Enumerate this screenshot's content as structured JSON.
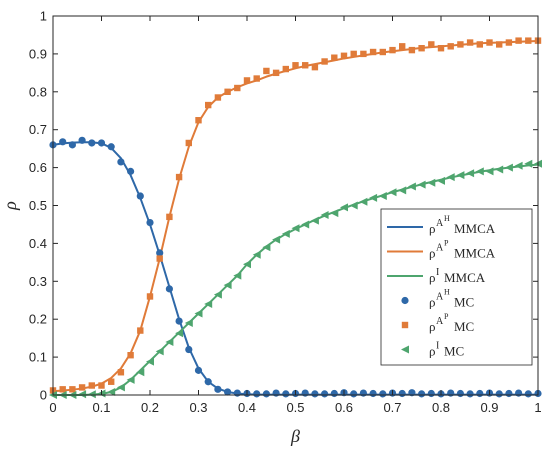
{
  "chart_data": {
    "type": "line",
    "title": "",
    "xlabel": "β",
    "ylabel": "ρ",
    "xlim": [
      0,
      1
    ],
    "ylim": [
      0,
      1
    ],
    "xticks": [
      0,
      0.1,
      0.2,
      0.3,
      0.4,
      0.5,
      0.6,
      0.7,
      0.8,
      0.9,
      1
    ],
    "xtick_labels": [
      "0",
      "0.1",
      "0.2",
      "0.3",
      "0.4",
      "0.5",
      "0.6",
      "0.7",
      "0.8",
      "0.9",
      "1"
    ],
    "yticks": [
      0,
      0.1,
      0.2,
      0.3,
      0.4,
      0.5,
      0.6,
      0.7,
      0.8,
      0.9,
      1
    ],
    "ytick_labels": [
      "0",
      "0.1",
      "0.2",
      "0.3",
      "0.4",
      "0.5",
      "0.6",
      "0.7",
      "0.8",
      "0.9",
      "1"
    ],
    "grid": false,
    "legend_placement": "lower-right",
    "colors": {
      "AH": "#2e68a8",
      "AP": "#e07b39",
      "I": "#4ea56e",
      "axis": "#262626"
    },
    "x": [
      0,
      0.02,
      0.04,
      0.06,
      0.08,
      0.1,
      0.12,
      0.14,
      0.16,
      0.18,
      0.2,
      0.22,
      0.24,
      0.26,
      0.28,
      0.3,
      0.32,
      0.34,
      0.36,
      0.38,
      0.4,
      0.42,
      0.44,
      0.46,
      0.48,
      0.5,
      0.52,
      0.54,
      0.56,
      0.58,
      0.6,
      0.62,
      0.64,
      0.66,
      0.68,
      0.7,
      0.72,
      0.74,
      0.76,
      0.78,
      0.8,
      0.82,
      0.84,
      0.86,
      0.88,
      0.9,
      0.92,
      0.94,
      0.96,
      0.98,
      1
    ],
    "series": [
      {
        "name": "ρ^{A^H} MMCA",
        "legend_base": "ρ",
        "legend_sup": "A",
        "legend_supsup": "H",
        "legend_suffix": "MMCA",
        "style": "line",
        "color": "#2e68a8",
        "values": [
          0.66,
          0.664,
          0.666,
          0.667,
          0.667,
          0.664,
          0.652,
          0.625,
          0.58,
          0.52,
          0.45,
          0.37,
          0.285,
          0.2,
          0.125,
          0.07,
          0.035,
          0.017,
          0.008,
          0.004,
          0.002,
          0.001,
          0.001,
          0.001,
          0.001,
          0.001,
          0.001,
          0.001,
          0.001,
          0.001,
          0.001,
          0.001,
          0.001,
          0.001,
          0.001,
          0.001,
          0.001,
          0.001,
          0.001,
          0.001,
          0.001,
          0.001,
          0.001,
          0.001,
          0.001,
          0.001,
          0.001,
          0.001,
          0.001,
          0.001,
          0.001
        ]
      },
      {
        "name": "ρ^{A^P} MMCA",
        "legend_base": "ρ",
        "legend_sup": "A",
        "legend_supsup": "P",
        "legend_suffix": "MMCA",
        "style": "line",
        "color": "#e07b39",
        "values": [
          0.01,
          0.012,
          0.014,
          0.017,
          0.022,
          0.03,
          0.045,
          0.07,
          0.11,
          0.17,
          0.26,
          0.36,
          0.47,
          0.57,
          0.655,
          0.72,
          0.76,
          0.785,
          0.8,
          0.812,
          0.822,
          0.83,
          0.84,
          0.848,
          0.855,
          0.862,
          0.868,
          0.873,
          0.878,
          0.883,
          0.888,
          0.892,
          0.896,
          0.9,
          0.904,
          0.907,
          0.91,
          0.913,
          0.916,
          0.918,
          0.92,
          0.922,
          0.924,
          0.926,
          0.928,
          0.929,
          0.93,
          0.931,
          0.932,
          0.933,
          0.934
        ]
      },
      {
        "name": "ρ^{I} MMCA",
        "legend_base": "ρ",
        "legend_sup": "I",
        "legend_supsup": "",
        "legend_suffix": "MMCA",
        "style": "line",
        "color": "#4ea56e",
        "values": [
          0,
          0,
          0,
          0,
          0.001,
          0.003,
          0.008,
          0.02,
          0.04,
          0.065,
          0.09,
          0.115,
          0.14,
          0.165,
          0.19,
          0.215,
          0.24,
          0.265,
          0.29,
          0.315,
          0.345,
          0.37,
          0.392,
          0.41,
          0.425,
          0.438,
          0.45,
          0.462,
          0.473,
          0.483,
          0.493,
          0.502,
          0.511,
          0.519,
          0.527,
          0.535,
          0.542,
          0.549,
          0.556,
          0.562,
          0.568,
          0.574,
          0.579,
          0.584,
          0.589,
          0.593,
          0.597,
          0.6,
          0.603,
          0.606,
          0.608
        ]
      },
      {
        "name": "ρ^{A^H} MC",
        "legend_base": "ρ",
        "legend_sup": "A",
        "legend_supsup": "H",
        "legend_suffix": "MC",
        "style": "marker",
        "marker": "circle",
        "color": "#2e68a8",
        "values": [
          0.66,
          0.668,
          0.66,
          0.672,
          0.665,
          0.665,
          0.655,
          0.615,
          0.59,
          0.525,
          0.455,
          0.375,
          0.28,
          0.195,
          0.12,
          0.065,
          0.035,
          0.015,
          0.008,
          0.005,
          0.004,
          0.003,
          0.003,
          0.005,
          0.003,
          0.004,
          0.005,
          0.003,
          0.003,
          0.004,
          0.006,
          0.003,
          0.005,
          0.004,
          0.003,
          0.005,
          0.004,
          0.006,
          0.003,
          0.004,
          0.003,
          0.005,
          0.004,
          0.003,
          0.004,
          0.005,
          0.003,
          0.004,
          0.005,
          0.003,
          0.004
        ]
      },
      {
        "name": "ρ^{A^P} MC",
        "legend_base": "ρ",
        "legend_sup": "A",
        "legend_supsup": "P",
        "legend_suffix": "MC",
        "style": "marker",
        "marker": "square",
        "color": "#e07b39",
        "values": [
          0.012,
          0.015,
          0.015,
          0.02,
          0.025,
          0.025,
          0.035,
          0.06,
          0.105,
          0.17,
          0.26,
          0.36,
          0.47,
          0.575,
          0.665,
          0.725,
          0.765,
          0.785,
          0.8,
          0.81,
          0.83,
          0.835,
          0.855,
          0.85,
          0.86,
          0.87,
          0.87,
          0.865,
          0.88,
          0.89,
          0.895,
          0.9,
          0.9,
          0.905,
          0.905,
          0.91,
          0.92,
          0.91,
          0.915,
          0.925,
          0.915,
          0.92,
          0.925,
          0.93,
          0.925,
          0.93,
          0.925,
          0.93,
          0.935,
          0.935,
          0.935
        ]
      },
      {
        "name": "ρ^{I} MC",
        "legend_base": "ρ",
        "legend_sup": "I",
        "legend_supsup": "",
        "legend_suffix": "MC",
        "style": "marker",
        "marker": "triangle-left",
        "color": "#4ea56e",
        "values": [
          0,
          0,
          0,
          0.002,
          0.002,
          0.004,
          0.008,
          0.02,
          0.04,
          0.06,
          0.088,
          0.115,
          0.14,
          0.163,
          0.19,
          0.215,
          0.24,
          0.265,
          0.29,
          0.315,
          0.345,
          0.37,
          0.39,
          0.41,
          0.425,
          0.44,
          0.45,
          0.46,
          0.475,
          0.48,
          0.495,
          0.5,
          0.51,
          0.52,
          0.525,
          0.535,
          0.54,
          0.55,
          0.555,
          0.56,
          0.565,
          0.575,
          0.58,
          0.585,
          0.59,
          0.59,
          0.595,
          0.6,
          0.605,
          0.61,
          0.61
        ]
      }
    ]
  }
}
